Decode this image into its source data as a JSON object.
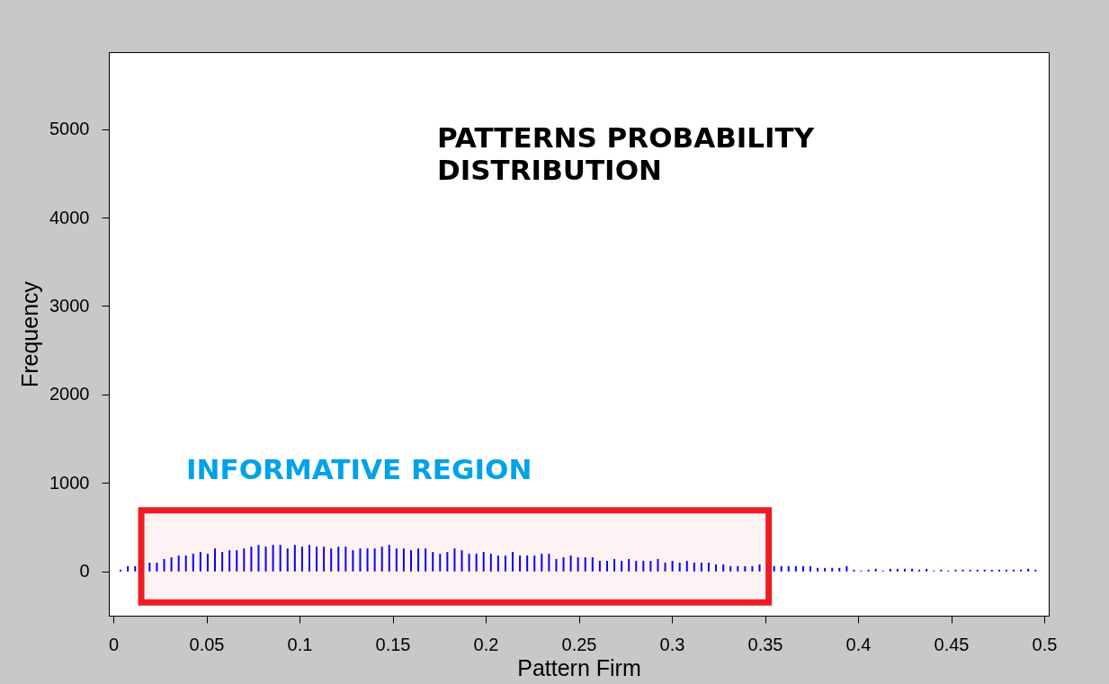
{
  "chart_data": {
    "type": "bar",
    "title": "PATTERNS PROBABILITY\nDISTRIBUTION",
    "xlabel": "Pattern Firm",
    "ylabel": "Frequency",
    "x": [
      0.0039,
      0.0078,
      0.0117,
      0.0156,
      0.0195,
      0.0234,
      0.0273,
      0.0312,
      0.0351,
      0.039,
      0.0429,
      0.0468,
      0.0507,
      0.0546,
      0.0585,
      0.0624,
      0.0663,
      0.0702,
      0.0741,
      0.078,
      0.0819,
      0.0858,
      0.0897,
      0.0936,
      0.0975,
      0.1014,
      0.1053,
      0.1092,
      0.1131,
      0.117,
      0.1209,
      0.1248,
      0.1287,
      0.1326,
      0.1365,
      0.1404,
      0.1443,
      0.1482,
      0.1521,
      0.156,
      0.1599,
      0.1638,
      0.1677,
      0.1716,
      0.1755,
      0.1794,
      0.1833,
      0.1872,
      0.1911,
      0.195,
      0.1989,
      0.2028,
      0.2067,
      0.2106,
      0.2145,
      0.2184,
      0.2223,
      0.2262,
      0.2301,
      0.234,
      0.2379,
      0.2418,
      0.2457,
      0.2496,
      0.2535,
      0.2574,
      0.2613,
      0.2652,
      0.2691,
      0.273,
      0.2769,
      0.2808,
      0.2847,
      0.2886,
      0.2925,
      0.2964,
      0.3003,
      0.3042,
      0.3081,
      0.312,
      0.3159,
      0.3198,
      0.3237,
      0.3276,
      0.3315,
      0.3354,
      0.3393,
      0.3432,
      0.3471,
      0.351,
      0.3549,
      0.3588,
      0.3627,
      0.3666,
      0.3705,
      0.3744,
      0.3783,
      0.3822,
      0.3861,
      0.39,
      0.3939,
      0.3978,
      0.4017,
      0.4056,
      0.4095,
      0.4134,
      0.4173,
      0.4212,
      0.4251,
      0.429,
      0.4329,
      0.4368,
      0.4407,
      0.4446,
      0.4485,
      0.4524,
      0.4563,
      0.4602,
      0.4641,
      0.468,
      0.4719,
      0.4758,
      0.4797,
      0.4836,
      0.4875,
      0.4914,
      0.4953
    ],
    "values": [
      20,
      60,
      60,
      null,
      100,
      100,
      140,
      160,
      180,
      180,
      200,
      220,
      200,
      260,
      220,
      240,
      240,
      260,
      280,
      300,
      280,
      300,
      300,
      260,
      300,
      280,
      300,
      280,
      280,
      260,
      280,
      280,
      240,
      260,
      260,
      260,
      280,
      300,
      260,
      260,
      240,
      260,
      260,
      220,
      200,
      220,
      260,
      240,
      200,
      200,
      220,
      200,
      180,
      180,
      220,
      180,
      180,
      180,
      200,
      200,
      140,
      160,
      180,
      160,
      160,
      160,
      120,
      120,
      140,
      120,
      140,
      120,
      120,
      120,
      140,
      100,
      120,
      100,
      120,
      100,
      100,
      100,
      80,
      80,
      60,
      60,
      60,
      60,
      80,
      null,
      60,
      60,
      60,
      60,
      60,
      60,
      40,
      40,
      40,
      40,
      60,
      20,
      10,
      20,
      30,
      10,
      30,
      30,
      30,
      30,
      20,
      30,
      10,
      20,
      10,
      20,
      20,
      20,
      20,
      20,
      20,
      20,
      20,
      20,
      20,
      30,
      20
    ],
    "color": "#0000ff",
    "xlim": [
      0,
      0.5
    ],
    "xticks": [
      0,
      0.05,
      0.1,
      0.15,
      0.2,
      0.25,
      0.3,
      0.35,
      0.4,
      0.45,
      0.5
    ],
    "ylim": [
      -500,
      5870
    ],
    "yticks": [
      0,
      1000,
      2000,
      3000,
      4000,
      5000
    ],
    "bands": [
      {
        "axis": "x",
        "from": 0.015,
        "to": 0.352,
        "label": "INFORMATIVE REGION",
        "color": "#ed1c24"
      }
    ],
    "grid": false
  }
}
